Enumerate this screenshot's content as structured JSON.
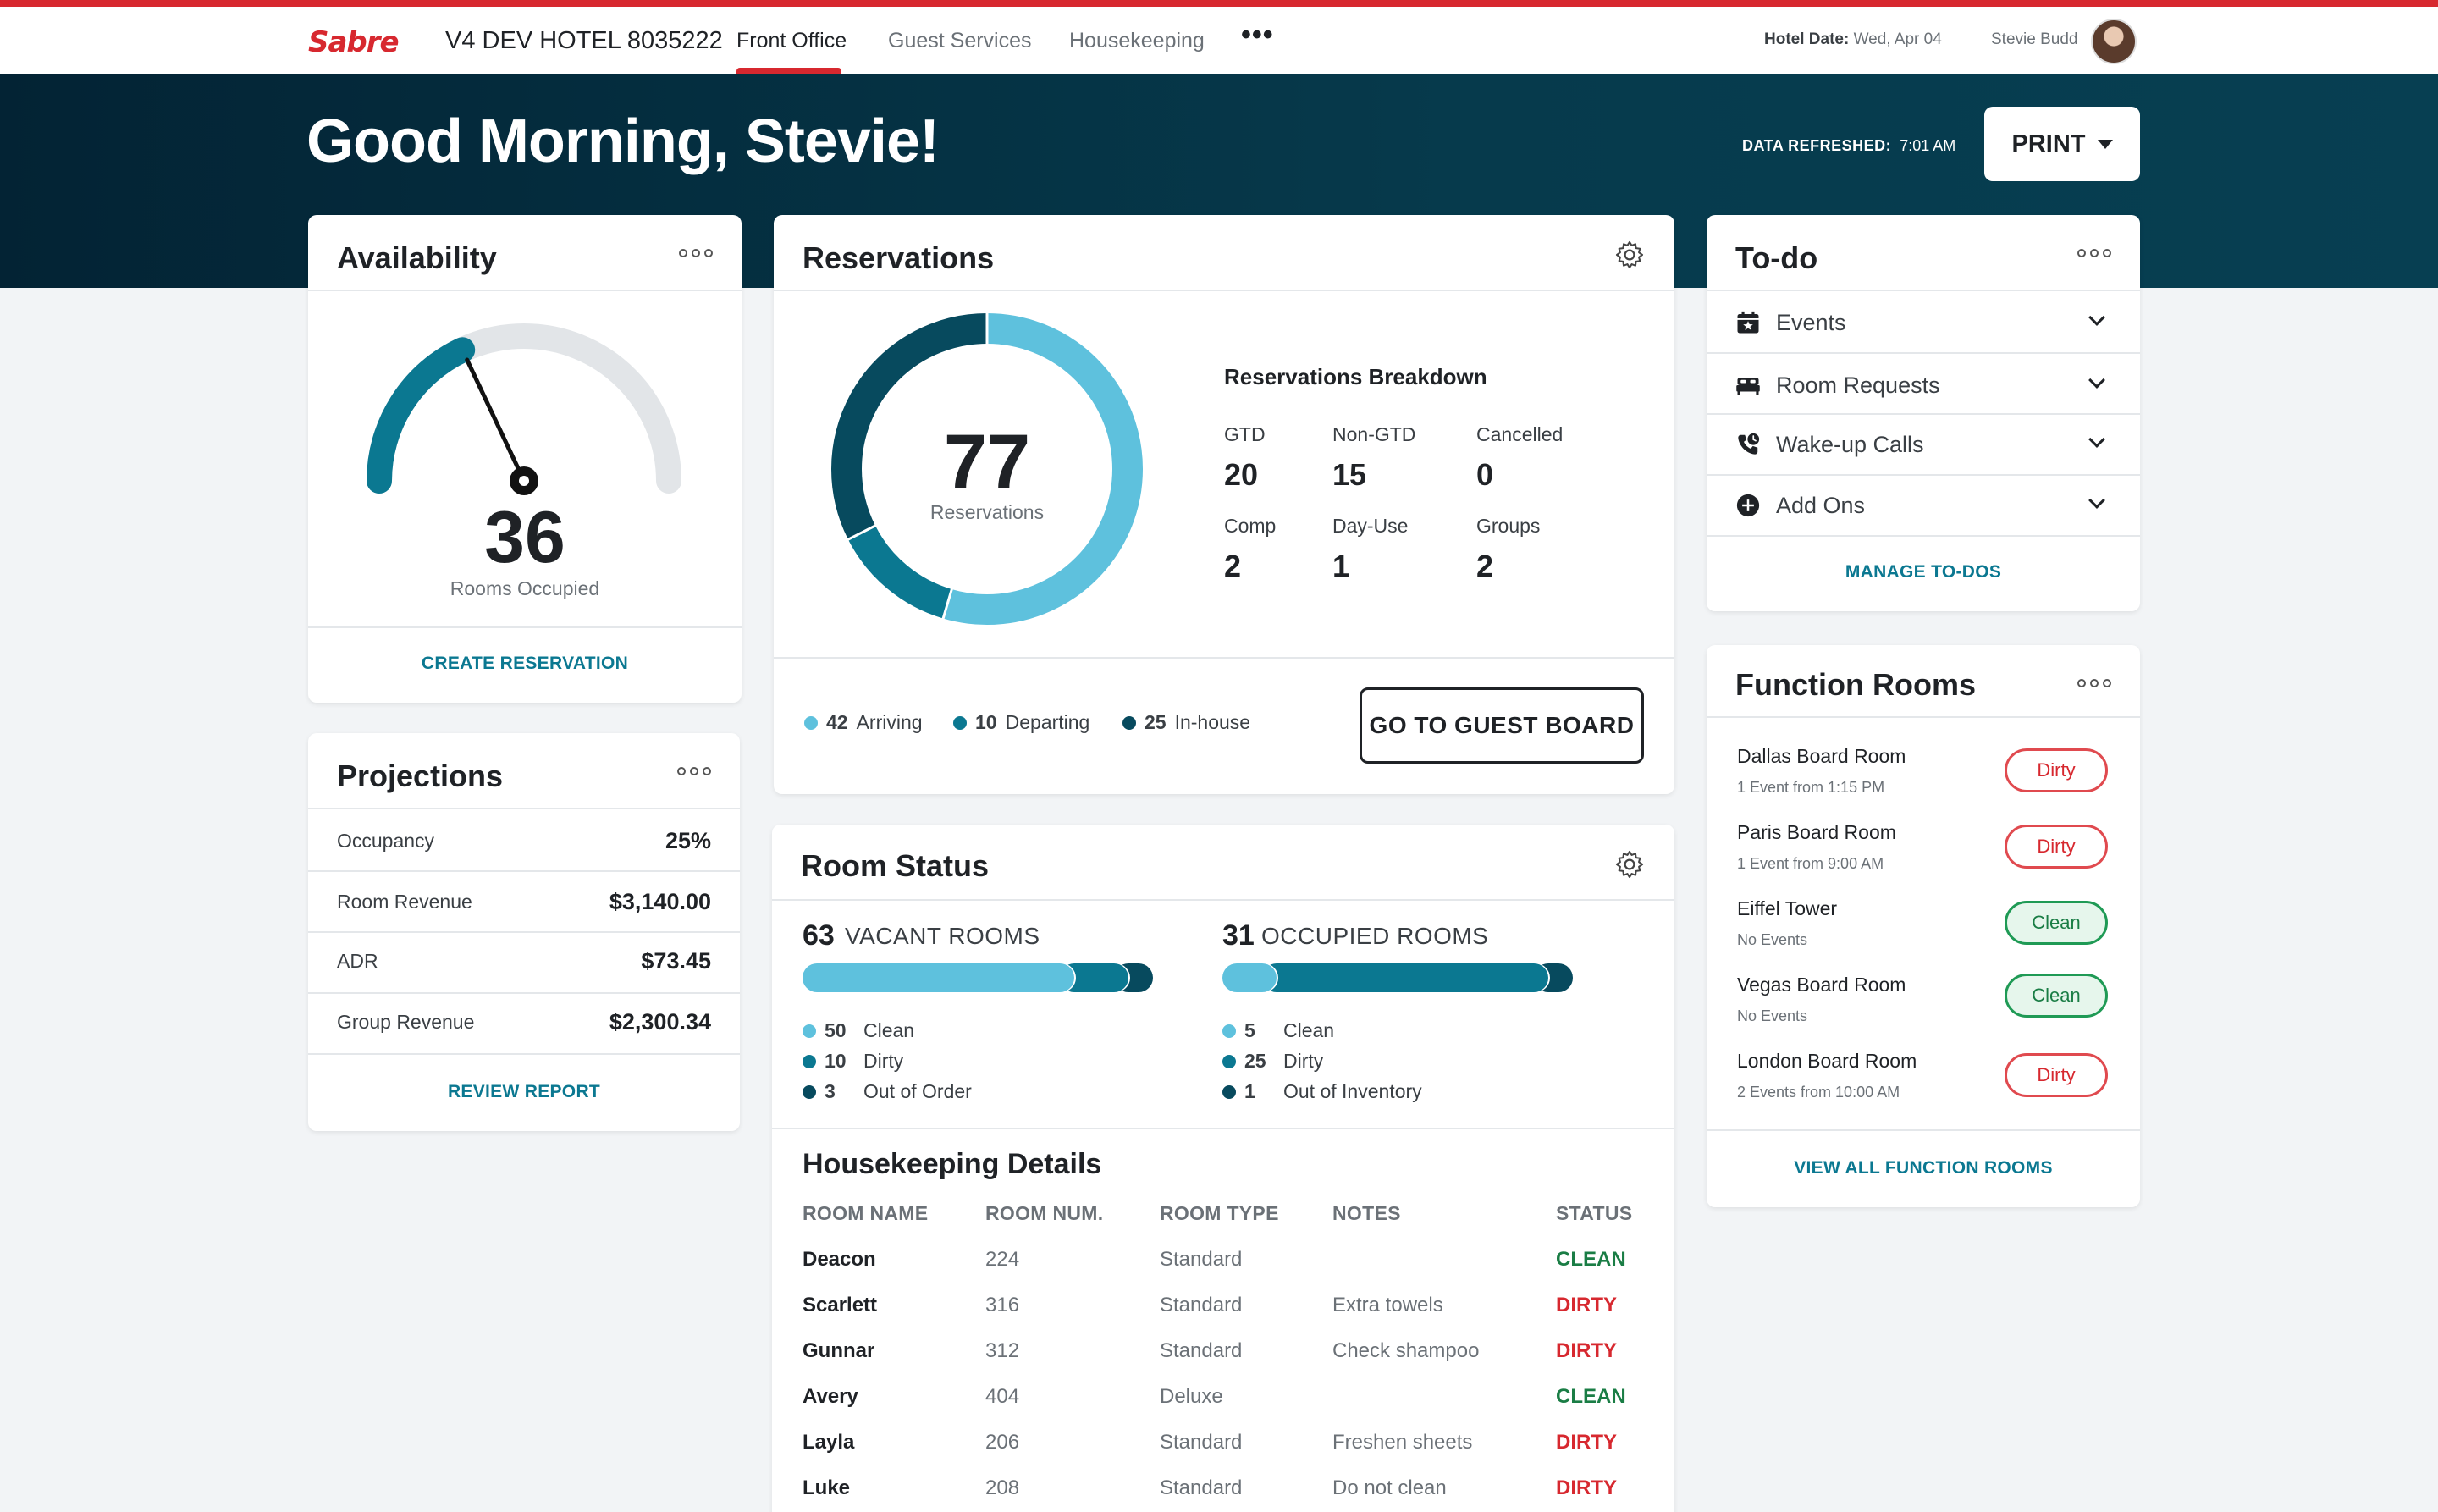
{
  "nav": {
    "brand": "Sabre",
    "hotel": "V4 DEV HOTEL 8035222",
    "tabs": [
      "Front Office",
      "Guest Services",
      "Housekeeping"
    ],
    "more": "•••",
    "hotel_date_label": "Hotel Date:",
    "hotel_date": "Wed, Apr 04",
    "user": "Stevie Budd"
  },
  "hero": {
    "greeting": "Good Morning, Stevie!",
    "refreshed_label": "DATA REFRESHED:",
    "refreshed_time": "7:01 AM",
    "print": "PRINT"
  },
  "availability": {
    "title": "Availability",
    "value": "36",
    "label": "Rooms Occupied",
    "gauge_fraction": 0.36,
    "action": "CREATE RESERVATION"
  },
  "projections": {
    "title": "Projections",
    "rows": [
      {
        "label": "Occupancy",
        "value": "25%"
      },
      {
        "label": "Room Revenue",
        "value": "$3,140.00"
      },
      {
        "label": "ADR",
        "value": "$73.45"
      },
      {
        "label": "Group Revenue",
        "value": "$2,300.34"
      }
    ],
    "action": "REVIEW REPORT"
  },
  "reservations": {
    "title": "Reservations",
    "total": "77",
    "total_label": "Reservations",
    "breakdown_title": "Reservations Breakdown",
    "breakdown": [
      {
        "label": "GTD",
        "value": "20"
      },
      {
        "label": "Non-GTD",
        "value": "15"
      },
      {
        "label": "Cancelled",
        "value": "0"
      },
      {
        "label": "Comp",
        "value": "2"
      },
      {
        "label": "Day-Use",
        "value": "1"
      },
      {
        "label": "Groups",
        "value": "2"
      }
    ],
    "legend": [
      {
        "count": "42",
        "label": "Arriving",
        "value": 42
      },
      {
        "count": "10",
        "label": "Departing",
        "value": 10
      },
      {
        "count": "25",
        "label": "In-house",
        "value": 25
      }
    ],
    "action": "GO TO GUEST BOARD"
  },
  "room_status": {
    "title": "Room Status",
    "vacant": {
      "count": "63",
      "label": "VACANT ROOMS",
      "items": [
        {
          "count": "50",
          "label": "Clean",
          "value": 50
        },
        {
          "count": "10",
          "label": "Dirty",
          "value": 10
        },
        {
          "count": "3",
          "label": "Out of Order",
          "value": 3
        }
      ]
    },
    "occupied": {
      "count": "31",
      "label": "OCCUPIED ROOMS",
      "items": [
        {
          "count": "5",
          "label": "Clean",
          "value": 5
        },
        {
          "count": "25",
          "label": "Dirty",
          "value": 25
        },
        {
          "count": "1",
          "label": "Out of Inventory",
          "value": 1
        }
      ]
    }
  },
  "housekeeping": {
    "title": "Housekeeping Details",
    "columns": [
      "ROOM NAME",
      "ROOM NUM.",
      "ROOM TYPE",
      "NOTES",
      "STATUS"
    ],
    "rows": [
      {
        "name": "Deacon",
        "num": "224",
        "type": "Standard",
        "notes": "",
        "status": "CLEAN"
      },
      {
        "name": "Scarlett",
        "num": "316",
        "type": "Standard",
        "notes": "Extra towels",
        "status": "DIRTY"
      },
      {
        "name": "Gunnar",
        "num": "312",
        "type": "Standard",
        "notes": "Check shampoo",
        "status": "DIRTY"
      },
      {
        "name": "Avery",
        "num": "404",
        "type": "Deluxe",
        "notes": "",
        "status": "CLEAN"
      },
      {
        "name": "Layla",
        "num": "206",
        "type": "Standard",
        "notes": "Freshen sheets",
        "status": "DIRTY"
      },
      {
        "name": "Luke",
        "num": "208",
        "type": "Standard",
        "notes": "Do not clean",
        "status": "DIRTY"
      }
    ]
  },
  "todo": {
    "title": "To-do",
    "items": [
      {
        "label": "Events",
        "icon": "calendar-star-icon"
      },
      {
        "label": "Room Requests",
        "icon": "bed-icon"
      },
      {
        "label": "Wake-up Calls",
        "icon": "phone-clock-icon"
      },
      {
        "label": "Add Ons",
        "icon": "plus-circle-icon"
      }
    ],
    "action": "MANAGE TO-DOS"
  },
  "function_rooms": {
    "title": "Function Rooms",
    "rooms": [
      {
        "name": "Dallas Board Room",
        "sub": "1 Event from 1:15 PM",
        "status": "Dirty"
      },
      {
        "name": "Paris Board Room",
        "sub": "1 Event from 9:00 AM",
        "status": "Dirty"
      },
      {
        "name": "Eiffel Tower",
        "sub": "No Events",
        "status": "Clean"
      },
      {
        "name": "Vegas Board Room",
        "sub": "No Events",
        "status": "Clean"
      },
      {
        "name": "London Board Room",
        "sub": "2 Events from 10:00 AM",
        "status": "Dirty"
      }
    ],
    "action": "VIEW ALL FUNCTION ROOMS"
  },
  "colors": {
    "brand_red": "#d7282f",
    "hero_navy": "#032334",
    "teal_light": "#5ec1dd",
    "teal_mid": "#0b7891",
    "teal_dark": "#074a5e",
    "clean_green": "#1a7d45",
    "dirty_red": "#d7282f"
  }
}
